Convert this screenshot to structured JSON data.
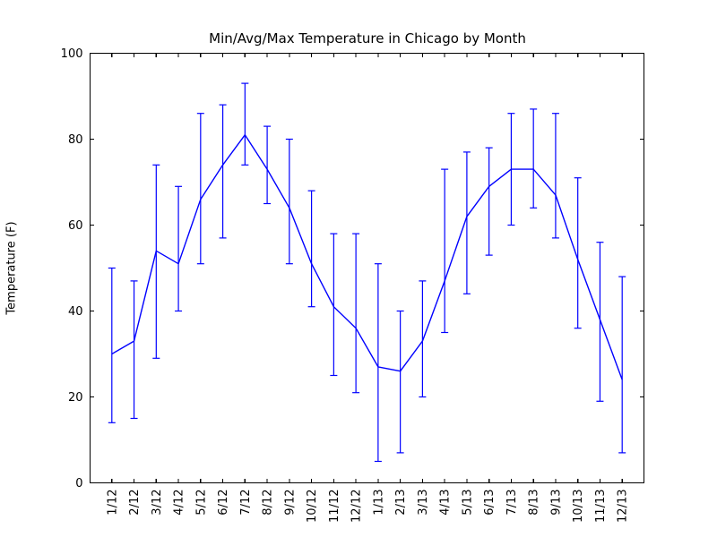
{
  "chart_data": {
    "type": "line",
    "subtype": "errorbar-min-avg-max",
    "title": "Min/Avg/Max Temperature in Chicago by Month",
    "xlabel": "",
    "ylabel": "Temperature (F)",
    "ylim": [
      0,
      100
    ],
    "yticks": [
      0,
      20,
      40,
      60,
      80,
      100
    ],
    "grid": false,
    "legend_position": "none",
    "line_color": "#0000ff",
    "axis_color": "#000000",
    "background_color": "#ffffff",
    "categories": [
      "1/12",
      "2/12",
      "3/12",
      "4/12",
      "5/12",
      "6/12",
      "7/12",
      "8/12",
      "9/12",
      "10/12",
      "11/12",
      "12/12",
      "1/13",
      "2/13",
      "3/13",
      "4/13",
      "5/13",
      "6/13",
      "7/13",
      "8/13",
      "9/13",
      "10/13",
      "11/13",
      "12/13"
    ],
    "series": [
      {
        "name": "min",
        "values": [
          14,
          15,
          29,
          40,
          51,
          57,
          74,
          65,
          51,
          41,
          25,
          21,
          5,
          7,
          20,
          35,
          44,
          53,
          60,
          64,
          57,
          36,
          19,
          7
        ]
      },
      {
        "name": "avg",
        "values": [
          30,
          33,
          54,
          51,
          66,
          74,
          81,
          73,
          64,
          51,
          41,
          36,
          27,
          26,
          33,
          47,
          62,
          69,
          73,
          73,
          67,
          52,
          38,
          24
        ]
      },
      {
        "name": "max",
        "values": [
          50,
          47,
          74,
          69,
          86,
          88,
          93,
          83,
          80,
          68,
          58,
          58,
          51,
          40,
          47,
          73,
          77,
          78,
          86,
          87,
          86,
          71,
          56,
          48
        ]
      }
    ]
  }
}
